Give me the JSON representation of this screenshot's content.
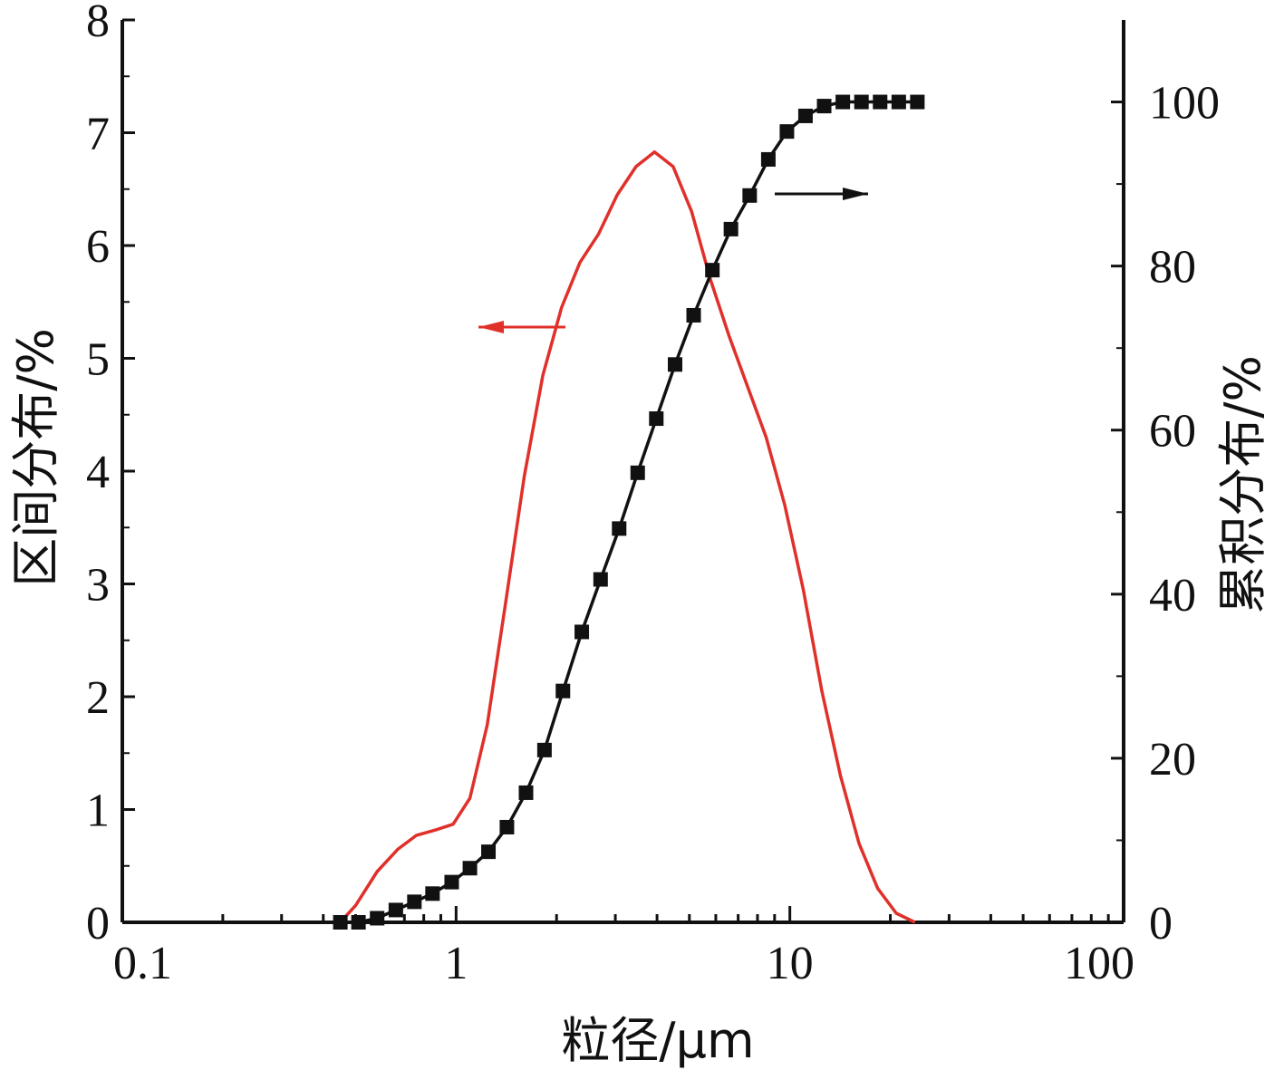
{
  "chart_data": {
    "type": "line",
    "x_scale": "log",
    "xlim": [
      0.1,
      100
    ],
    "ylim_left": [
      0,
      8
    ],
    "ylim_right": [
      0,
      110
    ],
    "xlabel": "粒径/μm",
    "ylabel_left": "区间分布/%",
    "ylabel_right": "累积分布/%",
    "x_ticks": [
      "0.1",
      "1",
      "10",
      "100"
    ],
    "y_ticks_left": [
      "0",
      "1",
      "2",
      "3",
      "4",
      "5",
      "6",
      "7",
      "8"
    ],
    "y_ticks_right": [
      "0",
      "20",
      "40",
      "60",
      "80",
      "100"
    ],
    "grid": false,
    "series": [
      {
        "axis": "left",
        "color": "#e0302a",
        "marker": "none",
        "x": [
          0.45,
          0.5,
          0.58,
          0.67,
          0.76,
          0.87,
          0.98,
          1.1,
          1.24,
          1.41,
          1.6,
          1.82,
          2.07,
          2.35,
          2.67,
          3.04,
          3.46,
          3.93,
          4.47,
          5.08,
          5.78,
          6.57,
          7.47,
          8.49,
          9.65,
          10.97,
          12.47,
          14.18,
          16.12,
          18.33,
          20.84,
          23.7
        ],
        "values": [
          0,
          0.15,
          0.45,
          0.65,
          0.77,
          0.82,
          0.87,
          1.1,
          1.75,
          2.85,
          3.95,
          4.85,
          5.45,
          5.85,
          6.1,
          6.45,
          6.7,
          6.83,
          6.7,
          6.3,
          5.7,
          5.2,
          4.75,
          4.3,
          3.7,
          2.95,
          2.05,
          1.3,
          0.7,
          0.3,
          0.08,
          0
        ]
      },
      {
        "axis": "right",
        "color": "#111111",
        "marker": "square",
        "x": [
          0.45,
          0.51,
          0.58,
          0.66,
          0.75,
          0.85,
          0.97,
          1.1,
          1.25,
          1.42,
          1.62,
          1.84,
          2.09,
          2.38,
          2.71,
          3.08,
          3.5,
          3.98,
          4.53,
          5.15,
          5.86,
          6.66,
          7.58,
          8.62,
          9.8,
          11.14,
          12.67,
          14.41,
          16.39,
          18.64,
          21.2,
          24.1
        ],
        "values": [
          0,
          0,
          0.5,
          1.5,
          2.5,
          3.5,
          4.9,
          6.6,
          8.6,
          11.6,
          15.8,
          21,
          28.2,
          35.4,
          41.8,
          48,
          54.8,
          61.4,
          68,
          74,
          79.5,
          84.5,
          88.6,
          93,
          96.4,
          98.3,
          99.5,
          100,
          100,
          100,
          100,
          100
        ]
      }
    ],
    "annotations": [
      {
        "type": "arrow",
        "color": "#e0302a",
        "direction": "left",
        "points_to": "left-axis"
      },
      {
        "type": "arrow",
        "color": "#111111",
        "direction": "right",
        "points_to": "right-axis"
      }
    ]
  }
}
